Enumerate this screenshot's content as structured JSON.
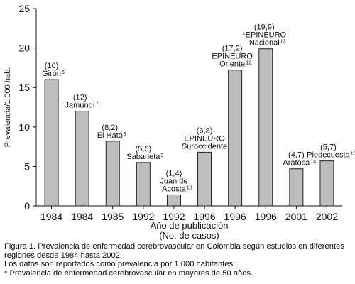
{
  "chart_data": {
    "type": "bar",
    "title": "",
    "xlabel_lines": [
      "Año de publicación",
      "(No. de casos)"
    ],
    "ylabel": "Prevalencia/1.000 hab.",
    "ylim": [
      0,
      25
    ],
    "yticks": [
      0,
      5,
      10,
      15,
      20,
      25
    ],
    "grid": false,
    "legend": "none",
    "bar_color": "#bdbdbd",
    "categories": [
      "1984",
      "1984",
      "1985",
      "1992",
      "1992",
      "1996",
      "1996",
      "1996",
      "2001",
      "2002"
    ],
    "values": [
      16,
      12,
      8.2,
      5.5,
      1.4,
      6.8,
      17.2,
      19.9,
      4.7,
      5.7
    ],
    "bars": [
      {
        "year": "1984",
        "value": 16,
        "label_lines": [
          "(16)",
          "Girón"
        ],
        "ref": "6"
      },
      {
        "year": "1984",
        "value": 12,
        "label_lines": [
          "(12)",
          "Jamundí"
        ],
        "ref": "7"
      },
      {
        "year": "1985",
        "value": 8.2,
        "label_lines": [
          "(8,2)",
          "El Hato"
        ],
        "ref": "8"
      },
      {
        "year": "1992",
        "value": 5.5,
        "label_lines": [
          "(5,5)",
          "Sabaneta"
        ],
        "ref": "9"
      },
      {
        "year": "1992",
        "value": 1.4,
        "label_lines": [
          "(1,4)",
          "Juan de",
          "Acosta"
        ],
        "ref": "10"
      },
      {
        "year": "1996",
        "value": 6.8,
        "label_lines": [
          "(6,8)",
          "EPINEURO",
          "Suroccidente"
        ],
        "ref": "11"
      },
      {
        "year": "1996",
        "value": 17.2,
        "label_lines": [
          "(17,2)",
          "EPINEURO",
          "Oriente"
        ],
        "ref": "12"
      },
      {
        "year": "1996",
        "value": 19.9,
        "label_lines": [
          "(19,9)",
          "*EPINEURO",
          "Nacional"
        ],
        "ref": "13"
      },
      {
        "year": "2001",
        "value": 4.7,
        "label_lines": [
          "(4,7)",
          "Aratoca"
        ],
        "ref": "14"
      },
      {
        "year": "2002",
        "value": 5.7,
        "label_lines": [
          "(5,7)",
          "Piedecuesta"
        ],
        "ref": "15"
      }
    ]
  },
  "caption": {
    "line1": "Figura 1. Prevalencia de enfermedad cerebrovascular en Colombia según estudios en diferentes regiones desde 1984 hasta 2002.",
    "line2": "Los datos son reportados como prevalencia por 1.000 habitantes.",
    "line3": "* Prevalencia de enfermedad cerebrovascular en mayores de 50 años."
  }
}
